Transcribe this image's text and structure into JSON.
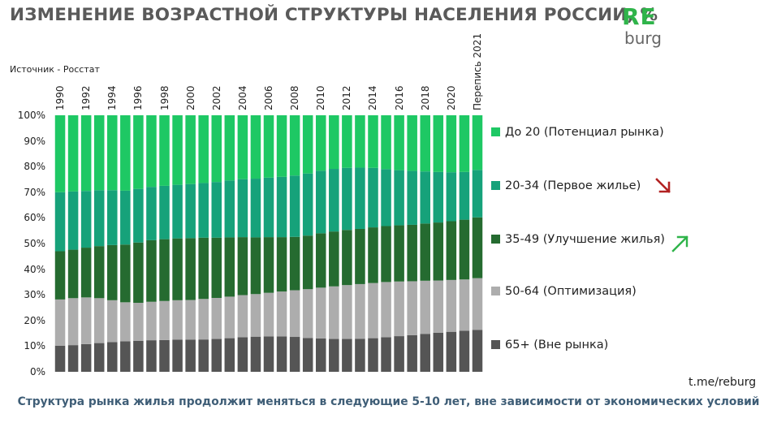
{
  "header": {
    "title": "ИЗМЕНЕНИЕ ВОЗРАСТНОЙ СТРУКТУРЫ НАСЕЛЕНИЯ РОССИИ, %",
    "source": "Источник - Росстат"
  },
  "logo": {
    "top": "RE",
    "bottom": "burg"
  },
  "footer": {
    "handle": "t.me/reburg",
    "caption": "Структура рынка жилья продолжит меняться в следующие 5-10 лет, вне зависимости от экономических условий"
  },
  "colors": {
    "under20": "#1ec864",
    "age20_34": "#16a27a",
    "age35_49": "#256b30",
    "age50_64": "#adadad",
    "age65plus": "#555555",
    "arrow_down": "#b22222",
    "arrow_up": "#2fb44a"
  },
  "icons": {
    "arrow_down": "arrow-down-right-icon",
    "arrow_up": "arrow-up-right-icon"
  },
  "chart_data": {
    "type": "bar",
    "stacked": true,
    "normalized": true,
    "ylim": [
      0,
      100
    ],
    "y_ticks": [
      "0%",
      "10%",
      "20%",
      "30%",
      "40%",
      "50%",
      "60%",
      "70%",
      "80%",
      "90%",
      "100%"
    ],
    "categories": [
      "1990",
      "1991",
      "1992",
      "1993",
      "1994",
      "1995",
      "1996",
      "1997",
      "1998",
      "1999",
      "2000",
      "2001",
      "2002",
      "2003",
      "2004",
      "2005",
      "2006",
      "2007",
      "2008",
      "2009",
      "2010",
      "2011",
      "2012",
      "2013",
      "2014",
      "2015",
      "2016",
      "2017",
      "2018",
      "2019",
      "2020",
      "2021",
      "Перепись 2021"
    ],
    "x_tick_labels": [
      "1990",
      "",
      "1992",
      "",
      "1994",
      "",
      "1996",
      "",
      "1998",
      "",
      "2000",
      "",
      "2002",
      "",
      "2004",
      "",
      "2006",
      "",
      "2008",
      "",
      "2010",
      "",
      "2012",
      "",
      "2014",
      "",
      "2016",
      "",
      "2018",
      "",
      "2020",
      "",
      "Перепись 2021"
    ],
    "series": [
      {
        "name": "65+ (Вне рынка)",
        "color": "#555555",
        "values": [
          10.2,
          10.4,
          10.8,
          11.2,
          11.6,
          11.9,
          12.1,
          12.3,
          12.4,
          12.5,
          12.5,
          12.6,
          12.8,
          13.1,
          13.5,
          13.7,
          13.8,
          13.8,
          13.6,
          13.2,
          13.0,
          12.8,
          12.8,
          12.9,
          13.1,
          13.5,
          13.9,
          14.3,
          14.8,
          15.2,
          15.6,
          16.0,
          16.3
        ]
      },
      {
        "name": "50-64 (Оптимизация)",
        "color": "#adadad",
        "values": [
          18.0,
          18.3,
          18.2,
          17.5,
          16.3,
          15.2,
          14.8,
          15.0,
          15.2,
          15.4,
          15.5,
          15.8,
          16.0,
          16.2,
          16.4,
          16.6,
          17.0,
          17.5,
          18.2,
          19.0,
          19.8,
          20.5,
          21.0,
          21.3,
          21.5,
          21.5,
          21.3,
          21.0,
          20.7,
          20.4,
          20.2,
          20.0,
          20.2
        ]
      },
      {
        "name": "35-49 (Улучшение жилья)",
        "color": "#256b30",
        "values": [
          18.8,
          18.9,
          19.4,
          20.3,
          21.5,
          22.5,
          23.5,
          24.0,
          24.1,
          24.1,
          24.1,
          23.9,
          23.5,
          23.1,
          22.6,
          22.1,
          21.7,
          21.2,
          20.8,
          20.9,
          21.2,
          21.4,
          21.5,
          21.5,
          21.7,
          21.8,
          21.9,
          22.0,
          22.3,
          22.6,
          22.9,
          23.3,
          23.7
        ]
      },
      {
        "name": "20-34 (Первое жилье)",
        "color": "#16a27a",
        "values": [
          23.0,
          22.7,
          22.1,
          21.8,
          21.4,
          21.0,
          20.9,
          20.8,
          20.8,
          20.9,
          21.1,
          21.3,
          21.7,
          22.2,
          22.6,
          22.9,
          23.2,
          23.5,
          23.9,
          24.2,
          24.4,
          24.4,
          24.2,
          23.9,
          23.2,
          22.2,
          21.5,
          21.0,
          20.3,
          19.7,
          19.1,
          18.6,
          18.5
        ]
      },
      {
        "name": "До 20 (Потенциал рынка)",
        "color": "#1ec864",
        "values": [
          30.0,
          29.7,
          29.5,
          29.2,
          29.2,
          29.4,
          28.7,
          27.9,
          27.5,
          27.1,
          26.8,
          26.4,
          26.0,
          25.4,
          24.9,
          24.7,
          24.3,
          24.0,
          23.5,
          22.7,
          21.6,
          20.9,
          20.5,
          20.4,
          20.5,
          21.0,
          21.4,
          21.7,
          21.9,
          22.1,
          22.2,
          22.1,
          21.3
        ]
      }
    ]
  },
  "legend": {
    "items": [
      {
        "label": "До 20 (Потенциал рынка)",
        "color": "#1ec864"
      },
      {
        "label": "20-34 (Первое жилье)",
        "color": "#16a27a"
      },
      {
        "label": "35-49 (Улучшение жилья)",
        "color": "#256b30"
      },
      {
        "label": "50-64 (Оптимизация)",
        "color": "#adadad"
      },
      {
        "label": "65+ (Вне рынка)",
        "color": "#555555"
      }
    ]
  }
}
